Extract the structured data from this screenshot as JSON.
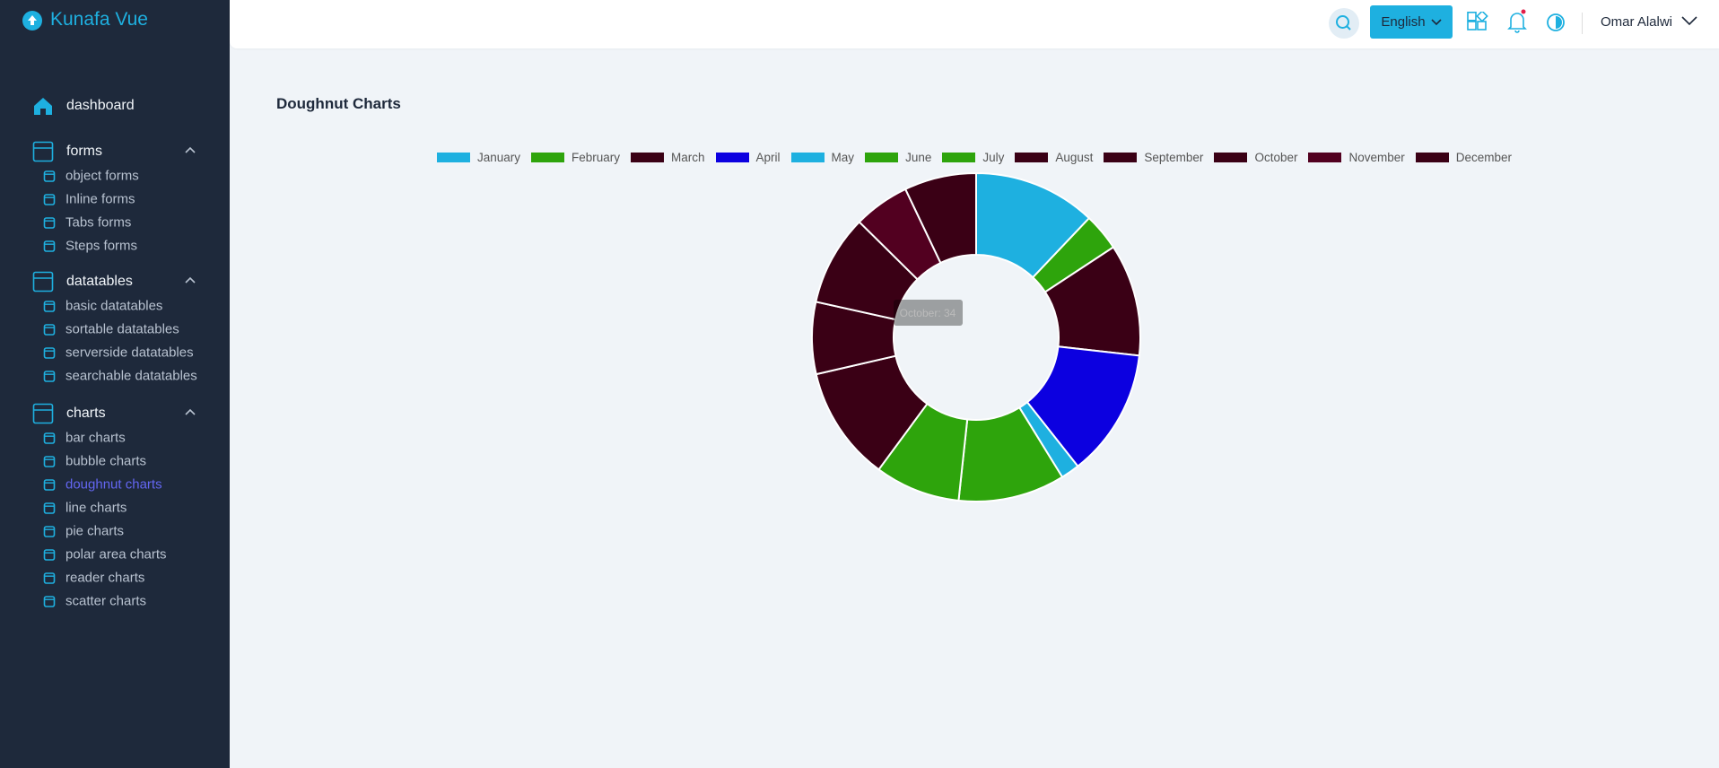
{
  "sidebar": {
    "brand": "Kunafa Vue",
    "dashboard": "dashboard",
    "groups": [
      {
        "label": "forms",
        "items": [
          "object forms",
          "Inline forms",
          "Tabs forms",
          "Steps forms"
        ]
      },
      {
        "label": "datatables",
        "items": [
          "basic datatables",
          "sortable datatables",
          "serverside datatables",
          "searchable datatables"
        ]
      },
      {
        "label": "charts",
        "items": [
          "bar charts",
          "bubble charts",
          "doughnut charts",
          "line charts",
          "pie charts",
          "polar area charts",
          "reader charts",
          "scatter charts"
        ]
      }
    ]
  },
  "header": {
    "language": "English",
    "user": "Omar Alalwi"
  },
  "chart_data": {
    "type": "doughnut",
    "title": "Doughnut Charts",
    "categories": [
      "January",
      "February",
      "March",
      "April",
      "May",
      "June",
      "July",
      "August",
      "September",
      "October",
      "November",
      "December"
    ],
    "values": [
      46,
      14,
      42,
      48,
      7,
      40,
      32,
      43,
      27,
      34,
      21,
      27
    ],
    "colors": [
      "#1eb0e0",
      "#2ea40c",
      "#3a0015",
      "#0c00e0",
      "#1eb0e0",
      "#2ea40c",
      "#2ea40c",
      "#3a0015",
      "#3a0015",
      "#3a0015",
      "#520020",
      "#3a0015"
    ],
    "tooltip": "October: 34"
  }
}
